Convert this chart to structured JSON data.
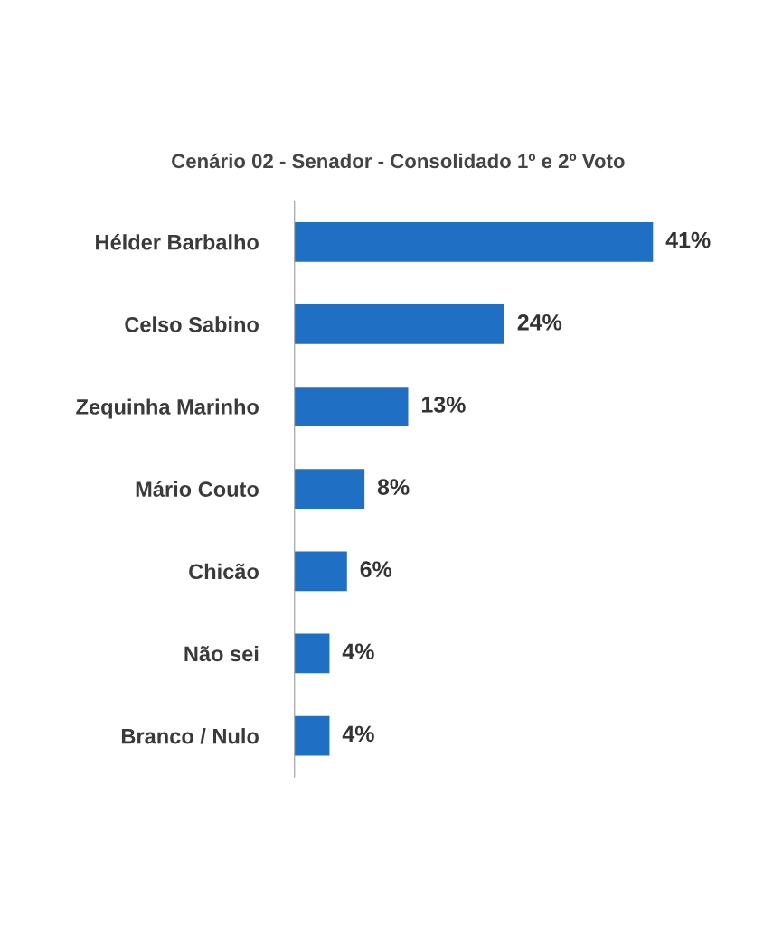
{
  "chart_data": {
    "type": "bar",
    "orientation": "horizontal",
    "title": "Cenário 02 - Senador - Consolidado 1º e 2º Voto",
    "categories": [
      "Hélder Barbalho",
      "Celso Sabino",
      "Zequinha Marinho",
      "Mário Couto",
      "Chicão",
      "Não sei",
      "Branco / Nulo"
    ],
    "values": [
      41,
      24,
      13,
      8,
      6,
      4,
      4
    ],
    "value_labels": [
      "41%",
      "24%",
      "13%",
      "8%",
      "6%",
      "4%",
      "4%"
    ],
    "color": "#1f6fc4",
    "grid": false,
    "legend": false
  }
}
